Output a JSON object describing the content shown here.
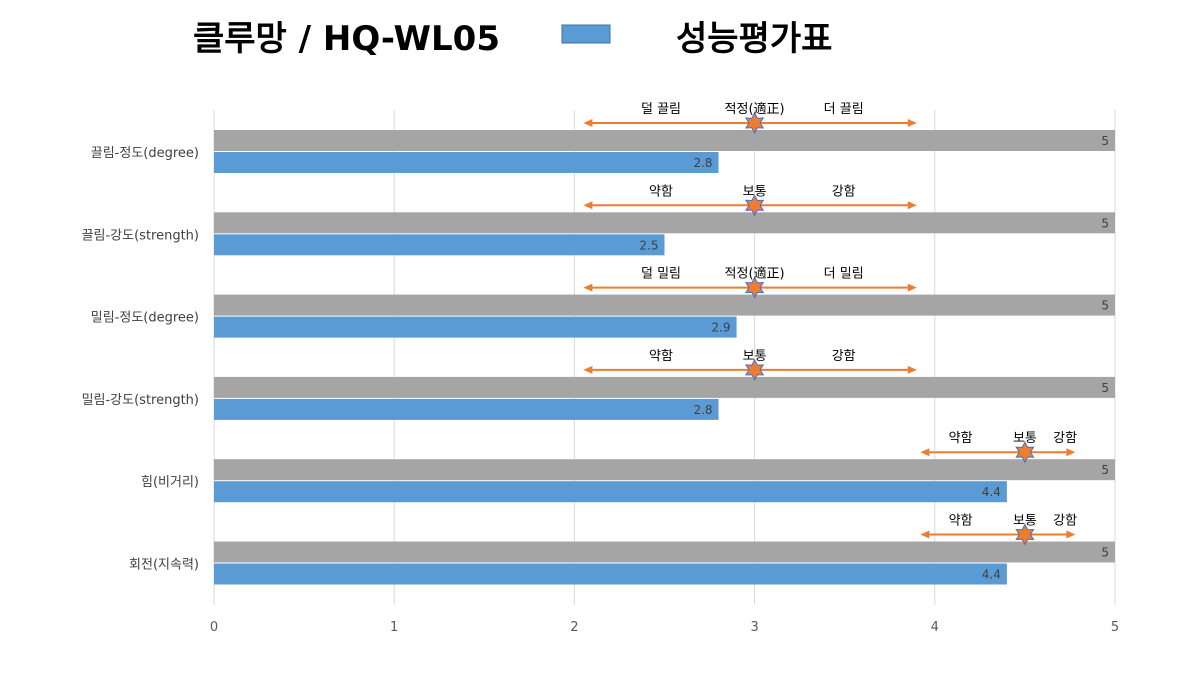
{
  "title": "클루망 / HQ-WL05",
  "legend": {
    "label": "성능평가표",
    "color": "#5B9BD5"
  },
  "chart_data": {
    "type": "bar",
    "orientation": "horizontal",
    "categories": [
      "끌림-정도(degree)",
      "끌림-강도(strength)",
      "밀림-정도(degree)",
      "밀림-강도(strength)",
      "힘(비거리)",
      "회전(지속력)"
    ],
    "series": [
      {
        "values": [
          5,
          5,
          5,
          5,
          5,
          5
        ],
        "color": "#A5A5A5"
      },
      {
        "name": "성능평가표",
        "values": [
          2.8,
          2.5,
          2.9,
          2.8,
          4.4,
          4.4
        ],
        "color": "#5B9BD5"
      }
    ],
    "xlim": [
      0,
      5
    ],
    "xticks": [
      "0",
      "1",
      "2",
      "3",
      "4",
      "5"
    ],
    "grid": true,
    "legend_position": "top",
    "annotations": [
      {
        "left": "덜 끌림",
        "center": "적정(適正)",
        "right": "더 끌림",
        "range": [
          2.05,
          3.9
        ],
        "mid": 3
      },
      {
        "left": "약함",
        "center": "보통",
        "right": "강함",
        "range": [
          2.05,
          3.9
        ],
        "mid": 3
      },
      {
        "left": "덜 밀림",
        "center": "적정(適正)",
        "right": "더 밀림",
        "range": [
          2.05,
          3.9
        ],
        "mid": 3
      },
      {
        "left": "약함",
        "center": "보통",
        "right": "강함",
        "range": [
          2.05,
          3.9
        ],
        "mid": 3
      },
      {
        "left": "약함",
        "center": "보통",
        "right": "강함",
        "range": [
          3.92,
          4.78
        ],
        "mid": 4.5
      },
      {
        "left": "약함",
        "center": "보통",
        "right": "강함",
        "range": [
          3.92,
          4.78
        ],
        "mid": 4.5
      }
    ],
    "arrow_color": "#ED7D31"
  }
}
